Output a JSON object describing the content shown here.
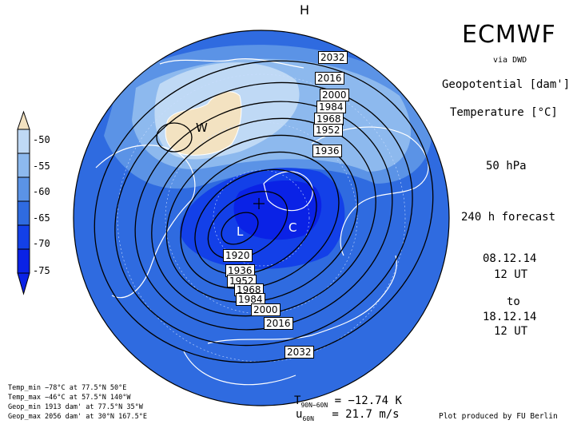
{
  "header": {
    "title": "ECMWF",
    "source": "via DWD",
    "var1": "Geopotential [dam']",
    "var2": "Temperature [°C]",
    "level": "50 hPa",
    "forecast": "240 h forecast",
    "init_date": "08.12.14",
    "init_time": "12 UT",
    "to": "to",
    "valid_date": "18.12.14",
    "valid_time": "12 UT",
    "top_marker": "H"
  },
  "colorbar": {
    "levels": [
      "-50",
      "-55",
      "-60",
      "-65",
      "-70",
      "-75"
    ],
    "colors": [
      "#f3e2c1",
      "#bfd9f5",
      "#8db9ee",
      "#5b93e6",
      "#2f6be0",
      "#1340e8",
      "#0a22e6"
    ]
  },
  "contour_labels": [
    "2032",
    "2016",
    "2000",
    "1984",
    "1968",
    "1952",
    "1936",
    "1920",
    "1936",
    "1952",
    "1968",
    "1984",
    "2000",
    "2016",
    "2032"
  ],
  "map_markers": {
    "warm": "W",
    "low": "L",
    "cold": "C"
  },
  "stats": {
    "temp_min": "Temp_min −78°C at 77.5°N 50°E",
    "temp_max": "Temp_max −46°C at 57.5°N 140°W",
    "geop_min": "Geop_min 1913 dam' at 77.5°N 35°W",
    "geop_max": "Geop_max 2056 dam' at 30°N 167.5°E"
  },
  "bottom": {
    "t_label": "T",
    "t_sub": "90N−60N",
    "t_value": "= −12.74 K",
    "u_label": "u",
    "u_sub": "60N",
    "u_value": "= 21.7 m/s",
    "credit": "Plot produced by FU Berlin"
  }
}
